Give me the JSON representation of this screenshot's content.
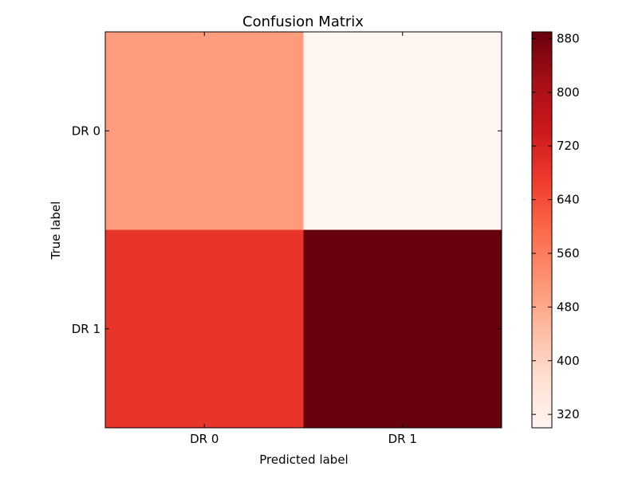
{
  "chart_data": {
    "type": "heatmap",
    "title": "Confusion Matrix",
    "xlabel": "Predicted label",
    "ylabel": "True label",
    "x_categories": [
      "DR 0",
      "DR 1"
    ],
    "y_categories": [
      "DR 0",
      "DR 1"
    ],
    "values": [
      [
        500,
        300
      ],
      [
        690,
        890
      ]
    ],
    "colormap": "Reds",
    "colorbar": {
      "range": [
        300,
        890
      ],
      "ticks": [
        320,
        400,
        480,
        560,
        640,
        720,
        800,
        880
      ],
      "tick_labels": [
        "320",
        "400",
        "480",
        "560",
        "640",
        "720",
        "800",
        "880"
      ]
    },
    "colors": {
      "cell_0_0": "#fc9c7d",
      "cell_0_1": "#fff5f0",
      "cell_1_0": "#e83429",
      "cell_1_1": "#67000d"
    }
  }
}
